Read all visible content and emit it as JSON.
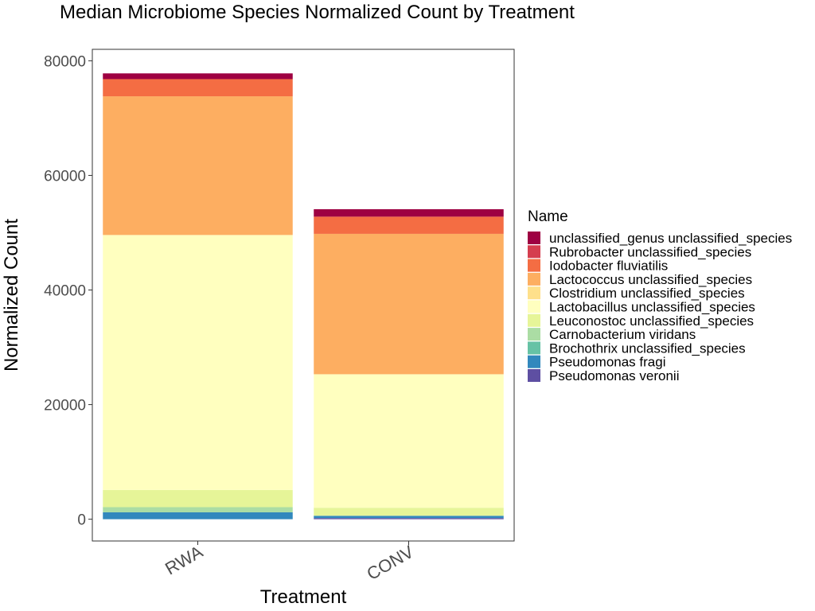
{
  "chart_data": {
    "type": "bar",
    "stacked": true,
    "title": "Median Microbiome Species Normalized Count by Treatment",
    "xlabel": "Treatment",
    "ylabel": "Normalized Count",
    "categories": [
      "RWA",
      "CONV"
    ],
    "ylim": [
      -3800,
      82000
    ],
    "yticks": [
      0,
      20000,
      40000,
      60000,
      80000
    ],
    "yticklabels": [
      "0",
      "20000",
      "40000",
      "60000",
      "80000"
    ],
    "grid": false,
    "legend_title": "Name",
    "legend_position": "right",
    "series": [
      {
        "name": "unclassified_genus unclassified_species",
        "color": "#9e0142",
        "values": [
          1000,
          1300
        ]
      },
      {
        "name": "Rubrobacter unclassified_species",
        "color": "#d53e4f",
        "values": [
          0,
          0
        ]
      },
      {
        "name": "Iodobacter fluviatilis",
        "color": "#f46d43",
        "values": [
          3000,
          3000
        ]
      },
      {
        "name": "Lactococcus unclassified_species",
        "color": "#fdae61",
        "values": [
          24200,
          24500
        ]
      },
      {
        "name": "Clostridium unclassified_species",
        "color": "#fee08b",
        "values": [
          0,
          0
        ]
      },
      {
        "name": "Lactobacillus unclassified_species",
        "color": "#ffffbf",
        "values": [
          44500,
          23300
        ]
      },
      {
        "name": "Leuconostoc unclassified_species",
        "color": "#e6f598",
        "values": [
          3000,
          1400
        ]
      },
      {
        "name": "Carnobacterium viridans",
        "color": "#abdda4",
        "values": [
          900,
          0
        ]
      },
      {
        "name": "Brochothrix unclassified_species",
        "color": "#66c2a5",
        "values": [
          0,
          0
        ]
      },
      {
        "name": "Pseudomonas fragi",
        "color": "#3288bd",
        "values": [
          1200,
          400
        ]
      },
      {
        "name": "Pseudomonas veronii",
        "color": "#5e4fa2",
        "values": [
          0,
          200
        ]
      }
    ]
  }
}
